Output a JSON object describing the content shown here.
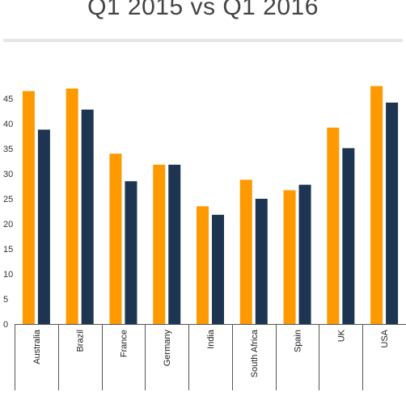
{
  "header": {
    "title": "Q1 2015 vs Q1 2016"
  },
  "colors": {
    "series_2015": "#ff9900",
    "series_2016": "#1e3551",
    "axis": "#555555",
    "title": "#444444"
  },
  "chart_data": {
    "type": "bar",
    "title": "Q1 2015 vs Q1 2016",
    "xlabel": "",
    "ylabel": "",
    "ylim": [
      0,
      50
    ],
    "yticks": [
      0,
      5,
      10,
      15,
      20,
      25,
      30,
      35,
      40,
      45
    ],
    "grid": false,
    "legend": "none",
    "categories": [
      "Australia",
      "Brazil",
      "France",
      "Germany",
      "India",
      "South Africa",
      "Spain",
      "UK",
      "USA"
    ],
    "series": [
      {
        "values": [
          46.5,
          47.0,
          34.0,
          31.8,
          23.5,
          28.8,
          26.7,
          39.2,
          47.5
        ]
      },
      {
        "values": [
          38.8,
          42.8,
          28.5,
          31.8,
          21.8,
          25.0,
          27.8,
          35.1,
          44.2
        ]
      }
    ]
  }
}
